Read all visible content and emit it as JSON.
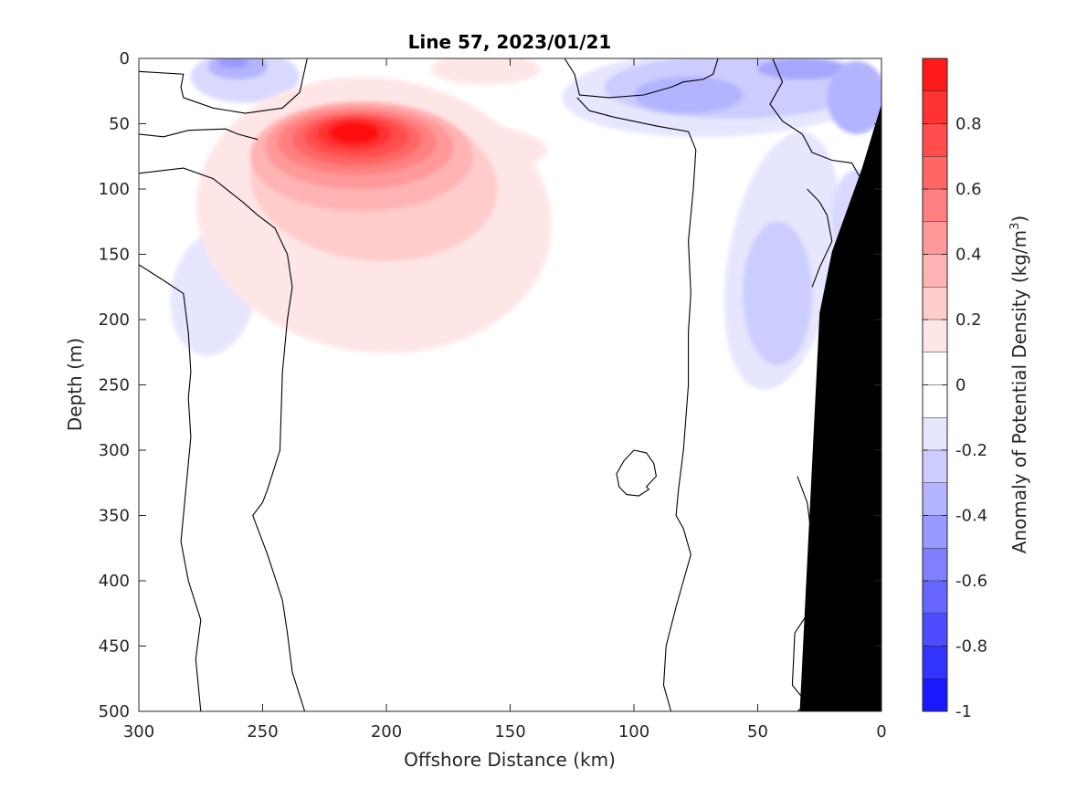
{
  "chart_data": {
    "type": "heatmap",
    "subtype": "filled-contour section",
    "title": "Line 57, 2023/01/21",
    "xlabel": "Offshore Distance (km)",
    "ylabel": "Depth (m)",
    "colorbar_label": "Anomaly of Potential Density (kg/m",
    "colorbar_label_sup": "3",
    "colorbar_label_end": ")",
    "xlim": [
      300,
      0
    ],
    "x_reversed": true,
    "ylim": [
      0,
      500
    ],
    "y_reversed": true,
    "x_ticks": [
      300,
      250,
      200,
      150,
      100,
      50,
      0
    ],
    "x_tick_labels": [
      "300",
      "250",
      "200",
      "150",
      "100",
      "50",
      "0"
    ],
    "y_ticks": [
      0,
      50,
      100,
      150,
      200,
      250,
      300,
      350,
      400,
      450,
      500
    ],
    "y_tick_labels": [
      "0",
      "50",
      "100",
      "150",
      "200",
      "250",
      "300",
      "350",
      "400",
      "450",
      "500"
    ],
    "clim": [
      -1,
      1
    ],
    "contour_levels": [
      -1,
      -0.9,
      -0.8,
      -0.7,
      -0.6,
      -0.5,
      -0.4,
      -0.3,
      -0.2,
      -0.1,
      0,
      0.1,
      0.2,
      0.3,
      0.4,
      0.5,
      0.6,
      0.7,
      0.8,
      0.9,
      1
    ],
    "colorbar_ticks": [
      0.8,
      0.6,
      0.4,
      0.2,
      0,
      -0.2,
      -0.4,
      -0.6,
      -0.8,
      -1
    ],
    "colorbar_tick_labels": [
      "0.8",
      "0.6",
      "0.4",
      "0.2",
      "0",
      "-0.2",
      "-0.4",
      "-0.6",
      "-0.8",
      "-1"
    ],
    "colormap": "blue-white-red",
    "colors": {
      "positive": "#ff0000",
      "negative": "#0000ff",
      "zero": "#ffffff",
      "land": "#000000",
      "zero_contour": "#000000"
    },
    "features": [
      {
        "kind": "positive-core",
        "x_center": 210,
        "depth_center": 60,
        "peak": 0.95
      },
      {
        "kind": "positive-tongue",
        "x_range": [
          280,
          120
        ],
        "depth_range": [
          0,
          230
        ],
        "level": 0.1
      },
      {
        "kind": "negative-surface",
        "x_range": [
          270,
          240
        ],
        "depth_range": [
          0,
          40
        ],
        "min": -0.4
      },
      {
        "kind": "negative-surface",
        "x_range": [
          125,
          0
        ],
        "depth_range": [
          0,
          60
        ],
        "min": -0.4
      },
      {
        "kind": "negative-subsurface",
        "x_range": [
          285,
          255
        ],
        "depth_range": [
          130,
          230
        ],
        "min": -0.2
      },
      {
        "kind": "negative-coastal",
        "x_range": [
          60,
          25
        ],
        "depth_range": [
          50,
          260
        ],
        "min": -0.3
      }
    ],
    "land_mask": {
      "label": "bathymetry",
      "x": [
        33,
        25,
        20,
        8,
        0
      ],
      "depth": [
        500,
        195,
        148,
        85,
        35
      ]
    },
    "grid": false
  }
}
